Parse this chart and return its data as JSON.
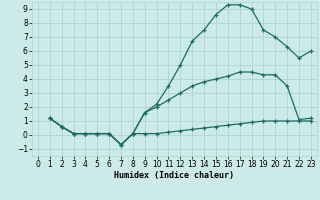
{
  "xlabel": "Humidex (Indice chaleur)",
  "bg_color": "#cceae8",
  "line_color": "#1e6b65",
  "grid_color": "#aed4d1",
  "xlim": [
    -0.5,
    23.5
  ],
  "ylim": [
    -1.5,
    9.5
  ],
  "xtick_labels": [
    "0",
    "1",
    "2",
    "3",
    "4",
    "5",
    "6",
    "7",
    "8",
    "9",
    "10",
    "11",
    "12",
    "13",
    "14",
    "15",
    "16",
    "17",
    "18",
    "19",
    "20",
    "21",
    "22",
    "23"
  ],
  "yticks": [
    -1,
    0,
    1,
    2,
    3,
    4,
    5,
    6,
    7,
    8,
    9
  ],
  "line1_x": [
    1,
    2,
    3,
    4,
    5,
    6,
    7,
    8,
    9,
    10,
    11,
    12,
    13,
    14,
    15,
    16,
    17,
    18,
    19,
    20,
    21,
    22,
    23
  ],
  "line1_y": [
    1.2,
    0.6,
    0.1,
    0.1,
    0.1,
    0.1,
    -0.7,
    0.1,
    1.6,
    2.2,
    3.5,
    5.0,
    6.7,
    7.5,
    8.6,
    9.3,
    9.3,
    9.0,
    7.5,
    7.0,
    6.3,
    5.5,
    6.0
  ],
  "line2_x": [
    1,
    2,
    3,
    4,
    5,
    6,
    7,
    8,
    9,
    10,
    11,
    12,
    13,
    14,
    15,
    16,
    17,
    18,
    19,
    20,
    21,
    22,
    23
  ],
  "line2_y": [
    1.2,
    0.6,
    0.1,
    0.1,
    0.1,
    0.1,
    -0.7,
    0.1,
    1.6,
    2.0,
    2.5,
    3.0,
    3.5,
    3.8,
    4.0,
    4.2,
    4.5,
    4.5,
    4.3,
    4.3,
    3.5,
    1.1,
    1.2
  ],
  "line3_x": [
    1,
    2,
    3,
    4,
    5,
    6,
    7,
    8,
    9,
    10,
    11,
    12,
    13,
    14,
    15,
    16,
    17,
    18,
    19,
    20,
    21,
    22,
    23
  ],
  "line3_y": [
    1.2,
    0.6,
    0.1,
    0.1,
    0.1,
    0.1,
    -0.7,
    0.1,
    0.1,
    0.1,
    0.2,
    0.3,
    0.4,
    0.5,
    0.6,
    0.7,
    0.8,
    0.9,
    1.0,
    1.0,
    1.0,
    1.0,
    1.0
  ]
}
